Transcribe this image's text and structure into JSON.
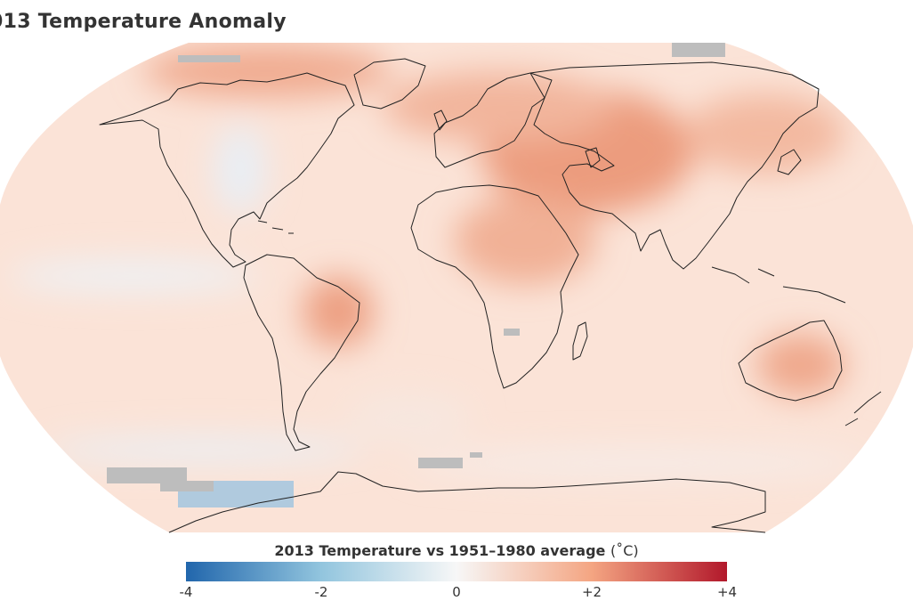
{
  "title": "013 Temperature Anomaly",
  "legend": {
    "title": "2013 Temperature vs 1951–1980 average",
    "unit": "(˚C)",
    "min": -4,
    "max": 4,
    "ticks": [
      {
        "value": -4,
        "label": "-4"
      },
      {
        "value": -2,
        "label": "-2"
      },
      {
        "value": 0,
        "label": "0"
      },
      {
        "value": 2,
        "label": "+2"
      },
      {
        "value": 4,
        "label": "+4"
      }
    ],
    "colors": {
      "cold": "#2166ac",
      "neutral": "#f7f7f7",
      "warm": "#b2182b"
    }
  },
  "map": {
    "projection": "Robinson",
    "no_data_color": "#bdbdbd",
    "coastline_color": "#222222"
  }
}
